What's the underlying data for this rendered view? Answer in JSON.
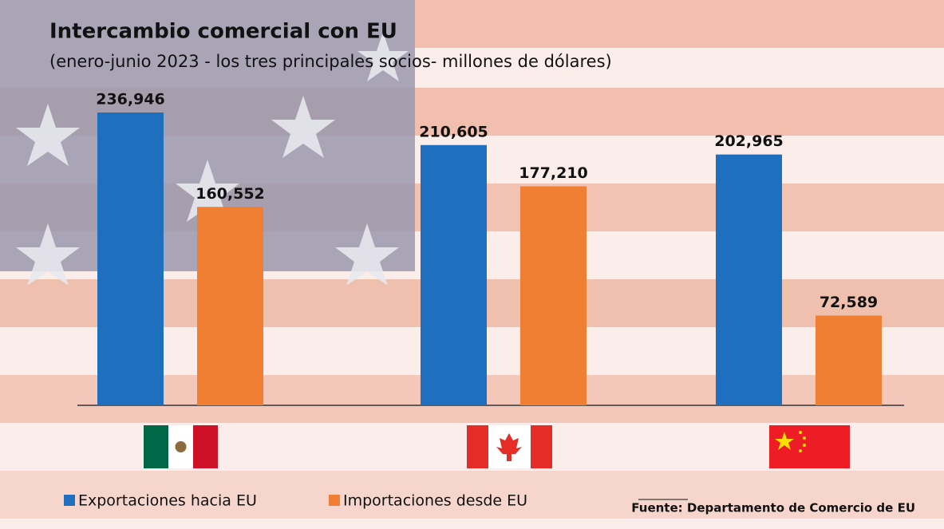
{
  "chart_data": {
    "type": "bar",
    "title": "Intercambio comercial con EU",
    "subtitle": "(enero-junio 2023 - los tres principales socios- millones de dólares)",
    "source": "Fuente: Departamento de Comercio de EU",
    "categories": [
      null,
      null,
      null
    ],
    "series": [
      {
        "name": "Exportaciones hacia EU",
        "color": "#1f6fbf",
        "values": [
          236946,
          210605,
          202965
        ],
        "value_labels": [
          "236,946",
          "210,605",
          "202,965"
        ]
      },
      {
        "name": "Importaciones desde EU",
        "color": "#f07f33",
        "values": [
          160552,
          177210,
          72589
        ],
        "value_labels": [
          "160,552",
          "177,210",
          "72,589"
        ]
      }
    ]
  }
}
